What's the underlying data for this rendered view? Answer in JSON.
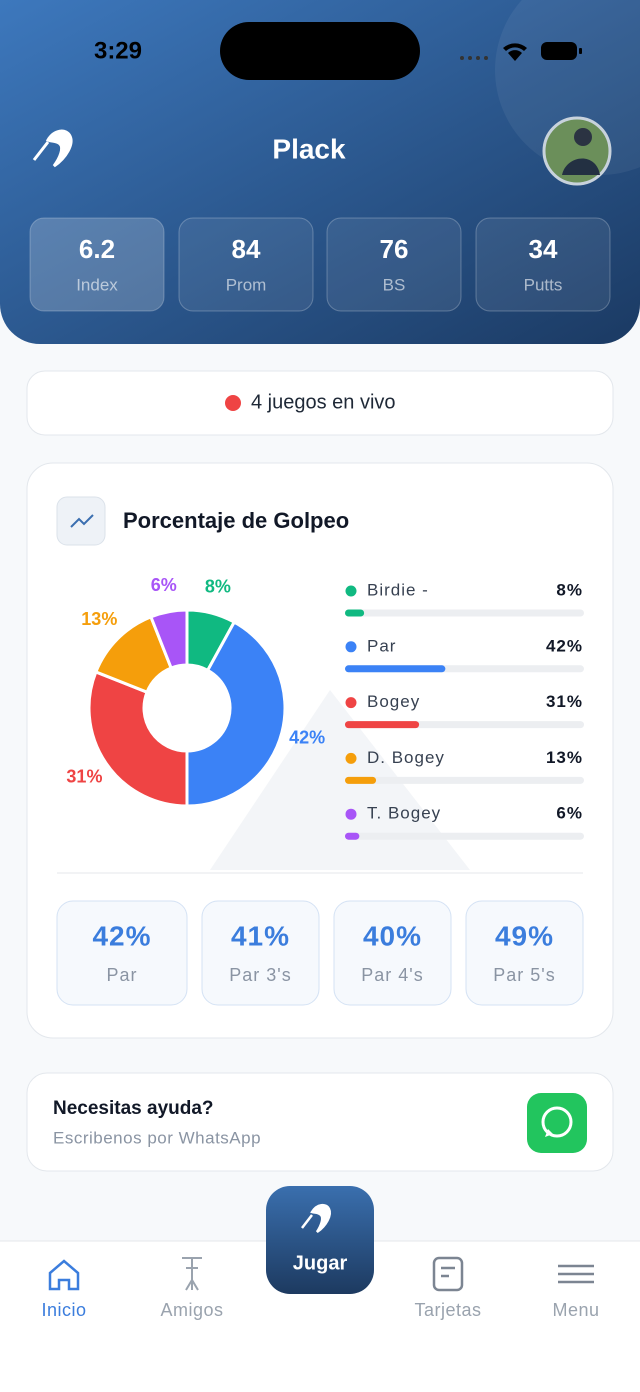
{
  "status_bar": {
    "time": "3:29"
  },
  "header": {
    "title": "Plack",
    "stats": [
      {
        "value": "6.2",
        "label": "Index"
      },
      {
        "value": "84",
        "label": "Prom"
      },
      {
        "value": "76",
        "label": "BS"
      },
      {
        "value": "34",
        "label": "Putts"
      }
    ]
  },
  "live": {
    "text": "4 juegos en vivo"
  },
  "stats_card": {
    "title": "Porcentaje de Golpeo",
    "chart": {
      "type": "pie",
      "categories": [
        "Birdie -",
        "Par",
        "Bogey",
        "D. Bogey",
        "T. Bogey"
      ],
      "values": [
        8,
        42,
        31,
        13,
        6
      ],
      "value_labels": [
        "8%",
        "42%",
        "31%",
        "13%",
        "6%"
      ],
      "colors": [
        "#10b981",
        "#3b82f6",
        "#ef4444",
        "#f59e0b",
        "#a855f7"
      ]
    },
    "summary": [
      {
        "value": "42%",
        "label": "Par"
      },
      {
        "value": "41%",
        "label": "Par 3's"
      },
      {
        "value": "40%",
        "label": "Par 4's"
      },
      {
        "value": "49%",
        "label": "Par 5's"
      }
    ]
  },
  "help": {
    "title": "Necesitas ayuda?",
    "subtitle": "Escribenos por WhatsApp"
  },
  "nav": {
    "items": [
      "Inicio",
      "Amigos",
      "Tarjetas",
      "Menu"
    ],
    "play": "Jugar"
  }
}
